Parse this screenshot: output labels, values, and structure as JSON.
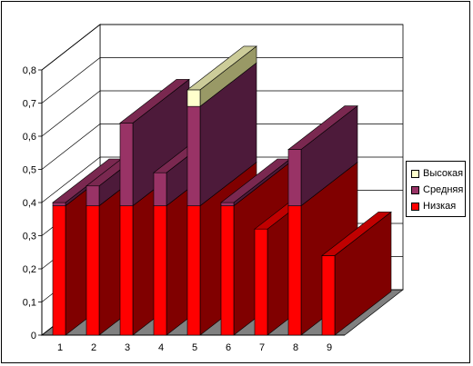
{
  "chart_data": {
    "type": "bar",
    "stacked": true,
    "three_d": true,
    "categories": [
      "1",
      "2",
      "3",
      "4",
      "5",
      "6",
      "7",
      "8",
      "9"
    ],
    "series": [
      {
        "name": "Низкая",
        "values": [
          0.39,
          0.39,
          0.39,
          0.39,
          0.39,
          0.39,
          0.32,
          0.39,
          0.24
        ],
        "colors": {
          "front": "#ff0000",
          "side": "#800000",
          "top": "#c00000"
        }
      },
      {
        "name": "Средняя",
        "values": [
          0.01,
          0.06,
          0.25,
          0.1,
          0.3,
          0.01,
          0.0,
          0.17,
          0.0
        ],
        "colors": {
          "front": "#993366",
          "side": "#4d1a3a",
          "top": "#7a2850"
        }
      },
      {
        "name": "Высокая",
        "values": [
          0.0,
          0.0,
          0.0,
          0.0,
          0.05,
          0.0,
          0.0,
          0.0,
          0.0
        ],
        "colors": {
          "front": "#ffffcc",
          "side": "#999966",
          "top": "#cccc99"
        }
      }
    ],
    "y_ticks": [
      "0",
      "0,1",
      "0,2",
      "0,3",
      "0,4",
      "0,5",
      "0,6",
      "0,7",
      "0,8"
    ],
    "ylim": [
      0,
      0.8
    ],
    "grid": true,
    "legend_position": "right"
  },
  "legend": {
    "items": [
      {
        "label": "Высокая",
        "color": "#ffffcc"
      },
      {
        "label": "Средняя",
        "color": "#993366"
      },
      {
        "label": "Низкая",
        "color": "#ff0000"
      }
    ]
  }
}
